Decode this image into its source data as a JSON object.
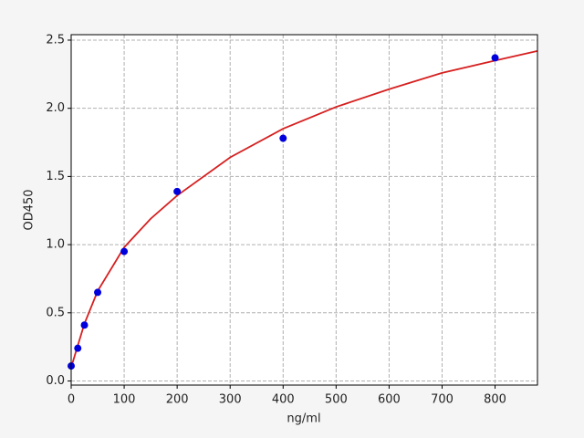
{
  "chart_data": {
    "type": "scatter",
    "xlabel": "ng/ml",
    "ylabel": "OD450",
    "xlim": [
      0,
      880
    ],
    "ylim": [
      -0.03,
      2.54
    ],
    "xticks": [
      0,
      100,
      200,
      300,
      400,
      500,
      600,
      700,
      800
    ],
    "yticks": [
      {
        "value": 0,
        "label": "0.0"
      },
      0.5,
      {
        "value": 1,
        "label": "1.0"
      },
      1.5,
      {
        "value": 2,
        "label": "2.0"
      },
      2.5
    ],
    "grid": true,
    "series": [
      {
        "kind": "line",
        "color": "#d62020",
        "x": [
          0,
          25,
          50,
          100,
          150,
          200,
          300,
          400,
          500,
          600,
          700,
          800,
          880
        ],
        "values": [
          0.1,
          0.42,
          0.66,
          0.98,
          1.19,
          1.36,
          1.64,
          1.85,
          2.01,
          2.14,
          2.26,
          2.35,
          2.42
        ]
      },
      {
        "kind": "points",
        "color": "#0000dd",
        "x": [
          0,
          12.5,
          25,
          50,
          100,
          200,
          400,
          800
        ],
        "values": [
          0.11,
          0.24,
          0.41,
          0.65,
          0.95,
          1.39,
          1.78,
          2.37
        ]
      }
    ]
  }
}
